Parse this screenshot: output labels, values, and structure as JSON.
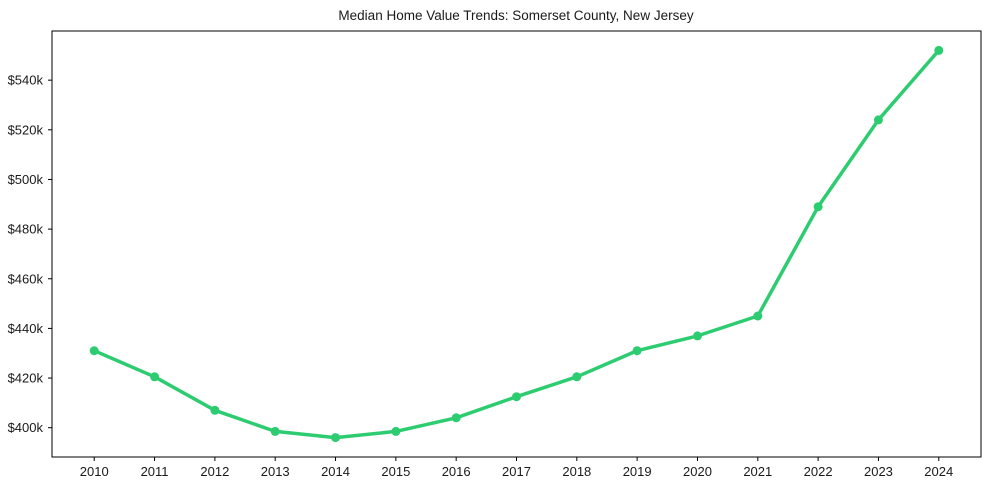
{
  "figure": {
    "background_color": "#ffffff"
  },
  "chart_data": {
    "type": "line",
    "title": "Median Home Value Trends: Somerset County, New Jersey",
    "xlabel": "",
    "ylabel": "",
    "x": [
      2010,
      2011,
      2012,
      2013,
      2014,
      2015,
      2016,
      2017,
      2018,
      2019,
      2020,
      2021,
      2022,
      2023,
      2024
    ],
    "series": [
      {
        "name": "Median Home Value",
        "values": [
          431,
          420.5,
          407,
          398.5,
          396,
          398.5,
          404,
          412.5,
          420.5,
          431,
          437,
          445,
          489,
          524,
          552
        ],
        "unit": "USD thousands",
        "color": "#2ecc71",
        "marker": "circle"
      }
    ],
    "xlim": [
      2009.3,
      2024.7
    ],
    "ylim": [
      388.2,
      559.8
    ],
    "xticks": [
      2010,
      2011,
      2012,
      2013,
      2014,
      2015,
      2016,
      2017,
      2018,
      2019,
      2020,
      2021,
      2022,
      2023,
      2024
    ],
    "xtick_labels": [
      "2010",
      "2011",
      "2012",
      "2013",
      "2014",
      "2015",
      "2016",
      "2017",
      "2018",
      "2019",
      "2020",
      "2021",
      "2022",
      "2023",
      "2024"
    ],
    "yticks": [
      400,
      420,
      440,
      460,
      480,
      500,
      520,
      540
    ],
    "ytick_labels": [
      "$400k",
      "$420k",
      "$440k",
      "$460k",
      "$480k",
      "$500k",
      "$520k",
      "$540k"
    ],
    "grid": false,
    "legend": null,
    "axis_color": "#000000",
    "text_color": "#1a1a1a"
  }
}
